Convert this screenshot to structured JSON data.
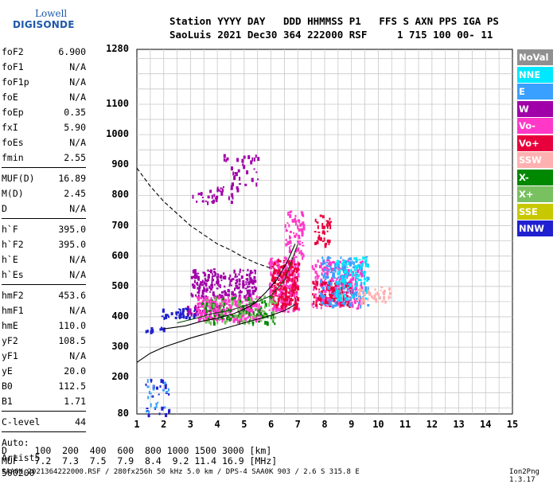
{
  "logo": {
    "brand": "Lowell",
    "product": "DIGISONDE"
  },
  "header": {
    "line1": "Station YYYY DAY   DDD HHMMSS P1   FFS S AXN PPS IGA PS",
    "line2": "SaoLuis 2021 Dec30 364 222000 RSF     1 715 100 00- 11"
  },
  "params_group1": [
    {
      "name": "foF2",
      "value": "6.900"
    },
    {
      "name": "foF1",
      "value": "N/A"
    },
    {
      "name": "foF1p",
      "value": "N/A"
    },
    {
      "name": "foE",
      "value": "N/A"
    },
    {
      "name": "foEp",
      "value": "0.35"
    },
    {
      "name": "fxI",
      "value": "5.90"
    },
    {
      "name": "foEs",
      "value": "N/A"
    },
    {
      "name": "fmin",
      "value": "2.55"
    }
  ],
  "params_group2": [
    {
      "name": "MUF(D)",
      "value": "16.89"
    },
    {
      "name": "M(D)",
      "value": "2.45"
    },
    {
      "name": "D",
      "value": "N/A"
    }
  ],
  "params_group3": [
    {
      "name": "h`F",
      "value": "395.0"
    },
    {
      "name": "h`F2",
      "value": "395.0"
    },
    {
      "name": "h`E",
      "value": "N/A"
    },
    {
      "name": "h`Es",
      "value": "N/A"
    }
  ],
  "params_group4": [
    {
      "name": "hmF2",
      "value": "453.6"
    },
    {
      "name": "hmF1",
      "value": "N/A"
    },
    {
      "name": "hmE",
      "value": "110.0"
    },
    {
      "name": "yF2",
      "value": "108.5"
    },
    {
      "name": "yF1",
      "value": "N/A"
    },
    {
      "name": "yE",
      "value": "20.0"
    },
    {
      "name": "B0",
      "value": "112.5"
    },
    {
      "name": "B1",
      "value": "1.71"
    }
  ],
  "clevel": {
    "name": "C-level",
    "value": "44"
  },
  "auto": {
    "label": "Auto:",
    "artist": "Artist5",
    "number": "500200"
  },
  "legend": [
    {
      "label": "NoVal",
      "color": "#909090"
    },
    {
      "label": "NNE",
      "color": "#00e8ff"
    },
    {
      "label": "E",
      "color": "#3aa0ff"
    },
    {
      "label": "W",
      "color": "#a000a8"
    },
    {
      "label": "Vo-",
      "color": "#ff38c8"
    },
    {
      "label": "Vo+",
      "color": "#e8003c"
    },
    {
      "label": "SSW",
      "color": "#ffb0b0"
    },
    {
      "label": "X-",
      "color": "#008800"
    },
    {
      "label": "X+",
      "color": "#78c060"
    },
    {
      "label": "SSE",
      "color": "#c8c800"
    },
    {
      "label": "NNW",
      "color": "#2020d0"
    }
  ],
  "muf_table": {
    "line1": "D     100  200  400  600  800 1000 1500 3000 [km]",
    "line2": "MUF   7.2  7.3  7.5  7.9  8.4  9.2 11.4 16.9 [MHz]"
  },
  "footer": "SAA0K_2021364222000.RSF / 280fx256h 50 kHz 5.0 km / DPS-4 SAA0K 903 / 2.6 S 315.8 E",
  "version": "Ion2Png 1.3.17",
  "chart_data": {
    "type": "scatter",
    "x_ticks": [
      "1",
      "2",
      "3",
      "4",
      "5",
      "6",
      "7",
      "8",
      "9",
      "10",
      "11",
      "12",
      "13",
      "14",
      "15"
    ],
    "y_ticks": [
      "1280",
      "1100",
      "1000",
      "900",
      "800",
      "700",
      "600",
      "500",
      "400",
      "300",
      "200",
      "80"
    ],
    "xlim": [
      1,
      15
    ],
    "ylim": [
      80,
      1280
    ],
    "grid": true,
    "legend_position": "right",
    "echo_regions": [
      {
        "color": "#a000a8",
        "x": [
          3.0,
          5.4
        ],
        "y": [
          470,
          560
        ],
        "count": 220
      },
      {
        "color": "#a000a8",
        "x": [
          3.0,
          4.6
        ],
        "y": [
          780,
          830
        ],
        "count": 35
      },
      {
        "color": "#a000a8",
        "x": [
          4.2,
          5.5
        ],
        "y": [
          820,
          940
        ],
        "count": 40
      },
      {
        "color": "#a000a8",
        "x": [
          2.8,
          4.2
        ],
        "y": [
          410,
          440
        ],
        "count": 60
      },
      {
        "color": "#2020d0",
        "x": [
          1.9,
          3.2
        ],
        "y": [
          400,
          430
        ],
        "count": 40
      },
      {
        "color": "#2020d0",
        "x": [
          1.3,
          2.0
        ],
        "y": [
          355,
          370
        ],
        "count": 15
      },
      {
        "color": "#ff38c8",
        "x": [
          3.2,
          5.6
        ],
        "y": [
          390,
          470
        ],
        "count": 260
      },
      {
        "color": "#ff38c8",
        "x": [
          5.9,
          7.0
        ],
        "y": [
          420,
          600
        ],
        "count": 260
      },
      {
        "color": "#e8003c",
        "x": [
          6.0,
          7.0
        ],
        "y": [
          430,
          590
        ],
        "count": 180
      },
      {
        "color": "#ff38c8",
        "x": [
          7.5,
          9.4
        ],
        "y": [
          430,
          590
        ],
        "count": 260
      },
      {
        "color": "#e8003c",
        "x": [
          7.5,
          9.0
        ],
        "y": [
          440,
          520
        ],
        "count": 120
      },
      {
        "color": "#3aa0ff",
        "x": [
          7.8,
          9.6
        ],
        "y": [
          440,
          600
        ],
        "count": 170
      },
      {
        "color": "#00e8ff",
        "x": [
          8.4,
          9.6
        ],
        "y": [
          460,
          600
        ],
        "count": 90
      },
      {
        "color": "#008800",
        "x": [
          3.4,
          6.2
        ],
        "y": [
          380,
          470
        ],
        "count": 90
      },
      {
        "color": "#78c060",
        "x": [
          3.4,
          6.2
        ],
        "y": [
          380,
          470
        ],
        "count": 60
      },
      {
        "color": "#ff38c8",
        "x": [
          6.5,
          7.2
        ],
        "y": [
          600,
          750
        ],
        "count": 70
      },
      {
        "color": "#e8003c",
        "x": [
          7.6,
          8.2
        ],
        "y": [
          640,
          740
        ],
        "count": 40
      },
      {
        "color": "#ffb0b0",
        "x": [
          9.2,
          10.4
        ],
        "y": [
          450,
          500
        ],
        "count": 50
      },
      {
        "color": "#2020d0",
        "x": [
          1.3,
          2.2
        ],
        "y": [
          80,
          200
        ],
        "count": 25
      },
      {
        "color": "#3aa0ff",
        "x": [
          1.3,
          2.2
        ],
        "y": [
          80,
          200
        ],
        "count": 20
      }
    ],
    "virtual_height_curve": {
      "x": [
        2.0,
        2.8,
        3.4,
        4.0,
        4.6,
        5.0,
        5.4,
        5.8,
        6.2,
        6.6,
        6.9
      ],
      "y": [
        360,
        370,
        385,
        395,
        410,
        425,
        445,
        480,
        520,
        580,
        640
      ]
    },
    "x_trace_curve": {
      "x": [
        2.5,
        3.2,
        3.8,
        4.4,
        5.0,
        5.5,
        6.0,
        6.5,
        7.0
      ],
      "y": [
        380,
        395,
        410,
        420,
        435,
        450,
        470,
        520,
        640
      ]
    },
    "true_height_curve": {
      "x": [
        1.0,
        1.5,
        2.0,
        3.0,
        4.0,
        5.0,
        6.0,
        6.5,
        6.9
      ],
      "y": [
        250,
        280,
        300,
        330,
        355,
        380,
        405,
        420,
        440
      ]
    },
    "dashed_curve": {
      "x": [
        1.0,
        1.5,
        2.0,
        2.5,
        3.0,
        3.5,
        4.0,
        4.5,
        5.0,
        5.5,
        6.0
      ],
      "y": [
        890,
        830,
        780,
        740,
        700,
        670,
        640,
        620,
        595,
        575,
        560
      ]
    }
  }
}
